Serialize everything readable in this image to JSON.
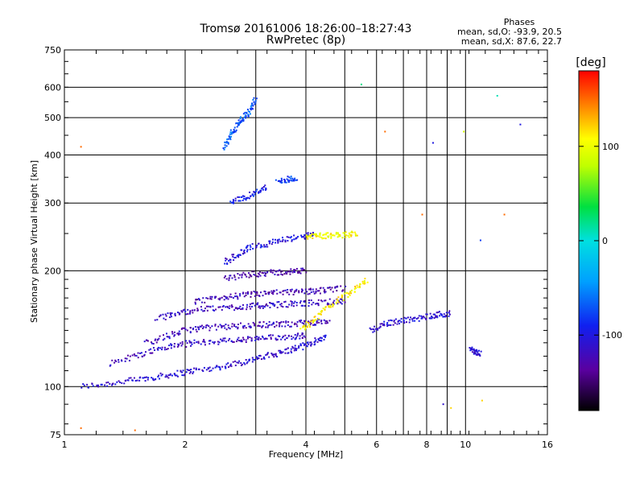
{
  "chart_data": {
    "type": "scatter",
    "title": "Tromsø 20161006 18:26:00–18:27:43",
    "subtitle": "RwPretec (8p)",
    "xlabel": "Frequency [MHz]",
    "ylabel": "Stationary phase Virtual Height [km]",
    "x_scale": "log",
    "y_scale": "log",
    "xlim": [
      1,
      16
    ],
    "ylim": [
      75,
      750
    ],
    "x_ticks": [
      1,
      2,
      4,
      6,
      8,
      10,
      16
    ],
    "x_tick_labels": [
      "1",
      "2",
      "4",
      "6",
      "8",
      "10",
      "16"
    ],
    "y_ticks": [
      75,
      100,
      200,
      300,
      400,
      500,
      600,
      750
    ],
    "y_tick_labels": [
      "75",
      "100",
      "200",
      "300",
      "400",
      "500",
      "600",
      "750"
    ],
    "grid": true,
    "stats": {
      "heading": "Phases",
      "line_o": "mean, sd,O: -93.9, 20.5",
      "line_x": "mean, sd,X:  87.6, 22.7"
    },
    "colorbar": {
      "label": "[deg]",
      "range": [
        -180,
        180
      ],
      "ticks": [
        100,
        0,
        -100
      ],
      "tick_labels": [
        "100",
        "0",
        "-100"
      ]
    },
    "traces": [
      {
        "name": "",
        "x": [
          1.1,
          1.3,
          1.5,
          1.7,
          1.9,
          2.1,
          2.4,
          2.7,
          3.0,
          3.3,
          3.6,
          3.9,
          4.2,
          4.5
        ],
        "y": [
          100,
          102,
          104,
          106,
          108,
          110,
          112,
          115,
          118,
          121,
          124,
          127,
          131,
          135
        ],
        "phase": -110
      },
      {
        "name": "",
        "x": [
          1.3,
          1.5,
          1.7,
          1.9,
          2.1,
          2.4,
          2.7,
          3.0,
          3.3,
          3.7,
          4.0
        ],
        "y": [
          115,
          120,
          125,
          128,
          130,
          131,
          132,
          133,
          134,
          135,
          136
        ],
        "phase": -115
      },
      {
        "name": "",
        "x": [
          1.6,
          1.8,
          2.0,
          2.2,
          2.5,
          2.8,
          3.1,
          3.4,
          3.8,
          4.2,
          4.6
        ],
        "y": [
          130,
          135,
          140,
          142,
          143,
          144,
          145,
          145,
          146,
          147,
          148
        ],
        "phase": -120
      },
      {
        "name": "",
        "x": [
          1.7,
          1.9,
          2.1,
          2.4,
          2.7,
          3.0,
          3.3,
          3.7,
          4.1,
          4.6,
          5.0
        ],
        "y": [
          150,
          155,
          158,
          160,
          161,
          162,
          163,
          164,
          165,
          166,
          167
        ],
        "phase": -118
      },
      {
        "name": "",
        "x": [
          2.1,
          2.4,
          2.7,
          3.0,
          3.3,
          3.7,
          4.1,
          4.5,
          5.0
        ],
        "y": [
          165,
          170,
          172,
          174,
          175,
          176,
          177,
          178,
          180
        ],
        "phase": -125
      },
      {
        "name": "",
        "x": [
          2.5,
          2.8,
          3.1,
          3.4,
          3.7,
          4.0
        ],
        "y": [
          190,
          195,
          197,
          198,
          199,
          200
        ],
        "phase": -130
      },
      {
        "name": "",
        "x": [
          2.5,
          2.7,
          2.9,
          3.2,
          3.5,
          3.9,
          4.2
        ],
        "y": [
          210,
          220,
          230,
          235,
          240,
          245,
          250
        ],
        "phase": -105
      },
      {
        "name": "",
        "x": [
          2.5,
          2.6,
          2.7,
          2.8,
          2.9,
          3.0
        ],
        "y": [
          420,
          450,
          480,
          500,
          520,
          560
        ],
        "phase": -70
      },
      {
        "name": "",
        "x": [
          2.6,
          2.8,
          3.0,
          3.2
        ],
        "y": [
          300,
          310,
          320,
          330
        ],
        "phase": -95
      },
      {
        "name": "",
        "x": [
          3.4,
          3.6,
          3.8
        ],
        "y": [
          340,
          345,
          350
        ],
        "phase": -80
      },
      {
        "name": "",
        "x": [
          3.9,
          4.2,
          4.5,
          4.9,
          5.3,
          5.7
        ],
        "y": [
          140,
          150,
          160,
          170,
          180,
          190
        ],
        "phase": 110
      },
      {
        "name": "",
        "x": [
          4.0,
          4.3,
          4.6,
          5.0,
          5.4
        ],
        "y": [
          245,
          246,
          247,
          248,
          250
        ],
        "phase": 105
      },
      {
        "name": "",
        "x": [
          5.8,
          6.3,
          6.8,
          7.4,
          8.0,
          8.6,
          9.2
        ],
        "y": [
          140,
          145,
          148,
          150,
          152,
          154,
          155
        ],
        "phase": -110
      },
      {
        "name": "",
        "x": [
          10.3,
          10.6,
          10.9
        ],
        "y": [
          125,
          123,
          121
        ],
        "phase": -110
      }
    ],
    "points": [
      {
        "x": 1.1,
        "y": 420,
        "phase": 150
      },
      {
        "x": 1.1,
        "y": 78,
        "phase": 150
      },
      {
        "x": 1.5,
        "y": 77,
        "phase": 150
      },
      {
        "x": 6.3,
        "y": 460,
        "phase": 150
      },
      {
        "x": 8.3,
        "y": 430,
        "phase": -100
      },
      {
        "x": 9.9,
        "y": 460,
        "phase": 90
      },
      {
        "x": 12.0,
        "y": 570,
        "phase": 10
      },
      {
        "x": 13.7,
        "y": 480,
        "phase": -100
      },
      {
        "x": 5.5,
        "y": 610,
        "phase": 20
      },
      {
        "x": 7.8,
        "y": 280,
        "phase": 150
      },
      {
        "x": 10.9,
        "y": 240,
        "phase": -80
      },
      {
        "x": 12.5,
        "y": 280,
        "phase": 150
      },
      {
        "x": 8.8,
        "y": 90,
        "phase": -110
      },
      {
        "x": 9.2,
        "y": 88,
        "phase": 120
      },
      {
        "x": 11.0,
        "y": 92,
        "phase": 120
      }
    ]
  }
}
